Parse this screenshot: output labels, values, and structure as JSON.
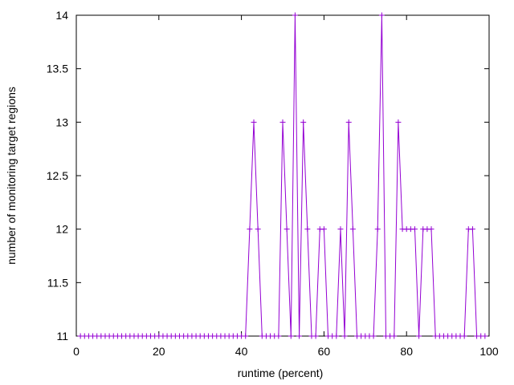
{
  "chart_data": {
    "type": "line",
    "xlabel": "runtime (percent)",
    "ylabel": "number of monitoring target regions",
    "xlim": [
      0,
      100
    ],
    "ylim": [
      11,
      14
    ],
    "x_ticks": [
      "0",
      "20",
      "40",
      "60",
      "80",
      "100"
    ],
    "y_ticks": [
      "11",
      "11.5",
      "12",
      "12.5",
      "13",
      "13.5",
      "14"
    ],
    "grid": false,
    "legend": "none",
    "series": [
      {
        "color": "#9400d3",
        "marker": "plus",
        "x": [
          1,
          2,
          3,
          4,
          5,
          6,
          7,
          8,
          9,
          10,
          11,
          12,
          13,
          14,
          15,
          16,
          17,
          18,
          19,
          20,
          21,
          22,
          23,
          24,
          25,
          26,
          27,
          28,
          29,
          30,
          31,
          32,
          33,
          34,
          35,
          36,
          37,
          38,
          39,
          40,
          41,
          42,
          43,
          44,
          45,
          46,
          47,
          48,
          49,
          50,
          51,
          52,
          53,
          54,
          55,
          56,
          57,
          58,
          59,
          60,
          61,
          62,
          63,
          64,
          65,
          66,
          67,
          68,
          69,
          70,
          71,
          72,
          73,
          74,
          75,
          76,
          77,
          78,
          79,
          80,
          81,
          82,
          83,
          84,
          85,
          86,
          87,
          88,
          89,
          90,
          91,
          92,
          93,
          94,
          95,
          96,
          97,
          98,
          99
        ],
        "y": [
          11,
          11,
          11,
          11,
          11,
          11,
          11,
          11,
          11,
          11,
          11,
          11,
          11,
          11,
          11,
          11,
          11,
          11,
          11,
          11,
          11,
          11,
          11,
          11,
          11,
          11,
          11,
          11,
          11,
          11,
          11,
          11,
          11,
          11,
          11,
          11,
          11,
          11,
          11,
          11,
          11,
          12,
          13,
          12,
          11,
          11,
          11,
          11,
          11,
          13,
          12,
          11,
          14,
          11,
          13,
          12,
          11,
          11,
          12,
          12,
          11,
          11,
          11,
          12,
          11,
          13,
          12,
          11,
          11,
          11,
          11,
          11,
          12,
          14,
          11,
          11,
          11,
          13,
          12,
          12,
          12,
          12,
          11,
          12,
          12,
          12,
          11,
          11,
          11,
          11,
          11,
          11,
          11,
          11,
          12,
          12,
          11,
          11,
          11
        ]
      }
    ]
  }
}
